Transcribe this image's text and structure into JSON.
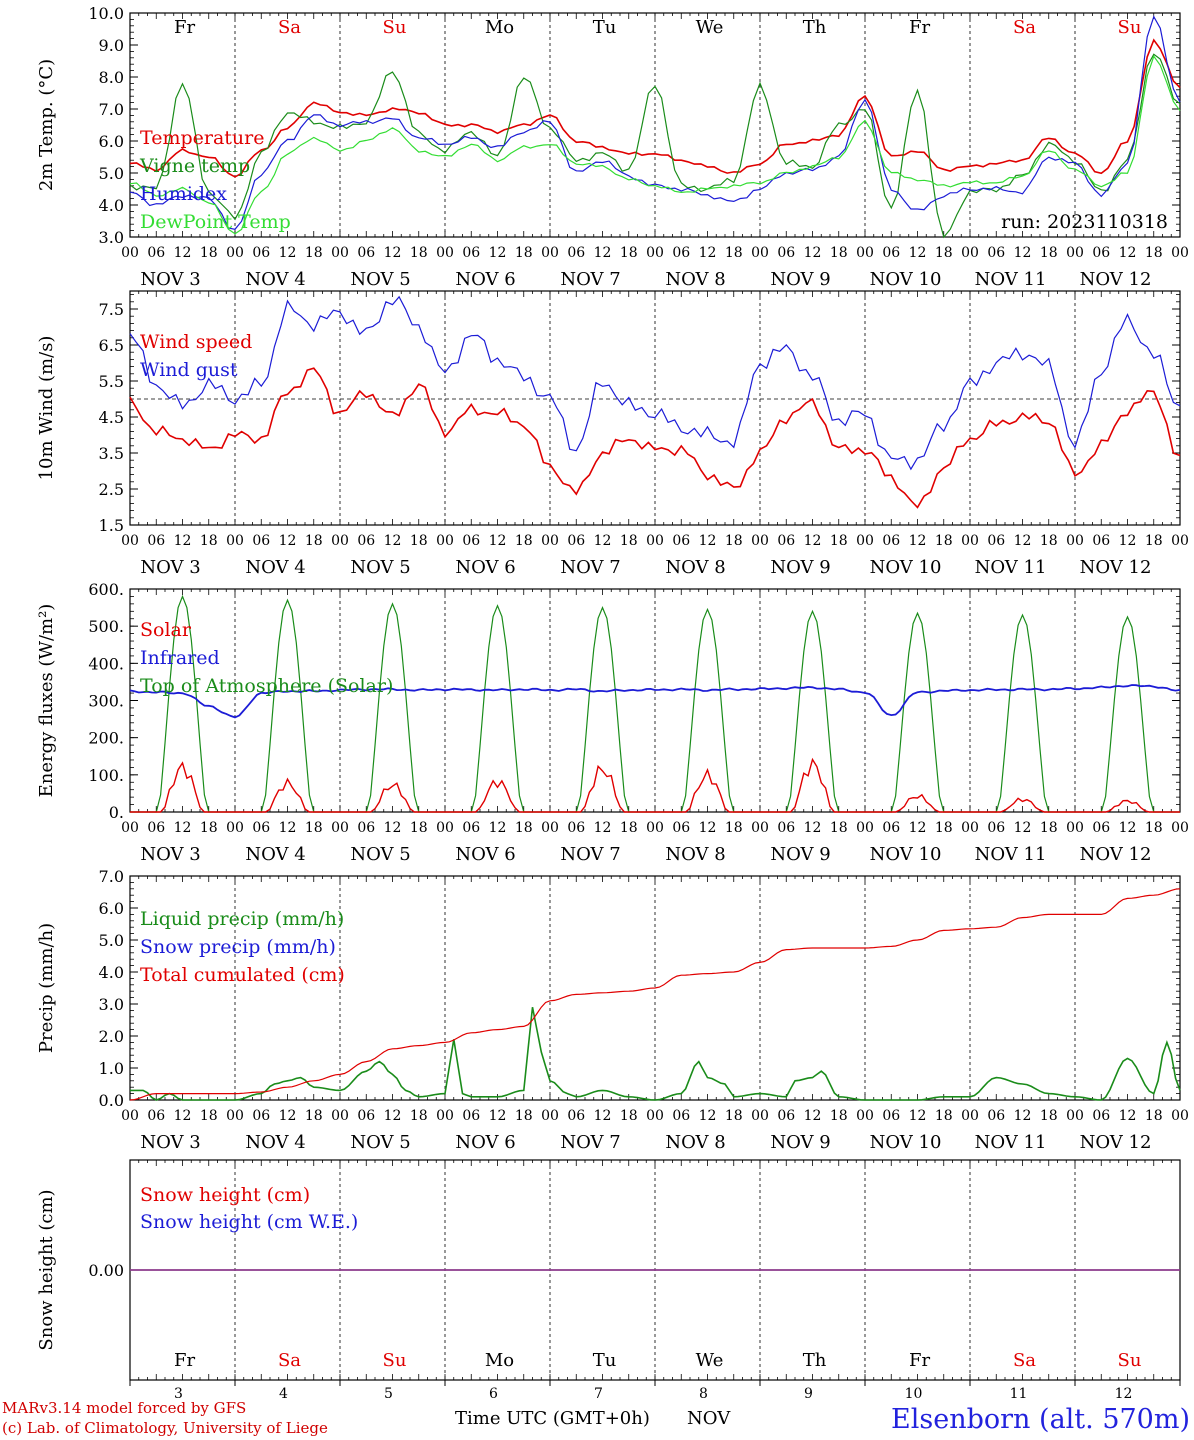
{
  "run_label": "run: 2023110318",
  "footer": {
    "model": "MARv3.14 model forced by GFS",
    "credit": "(c) Lab. of Climatology, University of Liege",
    "axis_title": "Time UTC (GMT+0h)",
    "month": "NOV",
    "station": "Elsenborn (alt. 570m)"
  },
  "days": [
    {
      "abbr": "Fr",
      "date": "3",
      "label": "NOV  3",
      "weekend": false
    },
    {
      "abbr": "Sa",
      "date": "4",
      "label": "NOV  4",
      "weekend": true
    },
    {
      "abbr": "Su",
      "date": "5",
      "label": "NOV  5",
      "weekend": true
    },
    {
      "abbr": "Mo",
      "date": "6",
      "label": "NOV  6",
      "weekend": false
    },
    {
      "abbr": "Tu",
      "date": "7",
      "label": "NOV  7",
      "weekend": false
    },
    {
      "abbr": "We",
      "date": "8",
      "label": "NOV  8",
      "weekend": false
    },
    {
      "abbr": "Th",
      "date": "9",
      "label": "NOV  9",
      "weekend": false
    },
    {
      "abbr": "Fr",
      "date": "10",
      "label": "NOV 10",
      "weekend": false
    },
    {
      "abbr": "Sa",
      "date": "11",
      "label": "NOV 11",
      "weekend": true
    },
    {
      "abbr": "Su",
      "date": "12",
      "label": "NOV 12",
      "weekend": true
    }
  ],
  "hour_ticks": [
    "00",
    "06",
    "12",
    "18"
  ],
  "last_hour_tick": "00",
  "colors": {
    "red": "#e00000",
    "green": "#1a8c1a",
    "blue": "#1c1cd6",
    "lightgreen": "#33dd33",
    "weekend": "#e00000",
    "snowline": "#8b3a8b"
  },
  "chart_data": [
    {
      "id": "temperature",
      "type": "line",
      "ylabel": "2m Temp. (°C)",
      "ylim": [
        3.0,
        10.0
      ],
      "yticks": [
        "3.0",
        "4.0",
        "5.0",
        "6.0",
        "7.0",
        "8.0",
        "9.0",
        "10.0"
      ],
      "series": [
        {
          "name": "Temperature",
          "color": "#e00000",
          "x": [
            0,
            6,
            12,
            18,
            24,
            30,
            36,
            42,
            48,
            54,
            60,
            66,
            72,
            78,
            84,
            90,
            96,
            102,
            108,
            114,
            120,
            126,
            132,
            138,
            144,
            150,
            156,
            162,
            168,
            174,
            180,
            186,
            192,
            198,
            204,
            210,
            216,
            222,
            228,
            234,
            240
          ],
          "y": [
            5.3,
            5.1,
            5.7,
            5.5,
            4.9,
            5.7,
            6.4,
            7.2,
            6.9,
            6.8,
            7.0,
            6.9,
            6.5,
            6.5,
            6.3,
            6.5,
            6.8,
            6.0,
            5.8,
            5.6,
            5.6,
            5.4,
            5.2,
            5.0,
            5.3,
            5.9,
            6.0,
            6.2,
            7.4,
            5.5,
            5.7,
            5.1,
            5.2,
            5.3,
            5.4,
            6.1,
            5.6,
            5.0,
            6.0,
            9.1,
            7.7
          ]
        },
        {
          "name": "Vigne temp",
          "color": "#1a8c1a",
          "x": [
            0,
            6,
            12,
            18,
            24,
            30,
            36,
            42,
            48,
            54,
            60,
            66,
            72,
            78,
            84,
            90,
            96,
            102,
            108,
            114,
            120,
            126,
            132,
            138,
            144,
            150,
            156,
            162,
            168,
            174,
            180,
            186,
            192,
            198,
            204,
            210,
            216,
            222,
            228,
            234,
            240
          ],
          "y": [
            4.6,
            4.5,
            7.8,
            4.4,
            3.6,
            5.6,
            6.9,
            6.6,
            6.4,
            6.6,
            8.2,
            6.2,
            5.7,
            6.3,
            5.5,
            8.0,
            6.4,
            5.4,
            5.6,
            5.1,
            7.8,
            4.6,
            4.5,
            4.8,
            7.7,
            5.3,
            5.2,
            6.5,
            7.0,
            3.9,
            7.6,
            3.0,
            4.4,
            4.5,
            4.9,
            5.9,
            5.4,
            4.4,
            5.4,
            8.8,
            7.1
          ]
        },
        {
          "name": "Humidex",
          "color": "#1c1cd6",
          "x": [
            0,
            6,
            12,
            18,
            24,
            30,
            36,
            42,
            48,
            54,
            60,
            66,
            72,
            78,
            84,
            90,
            96,
            102,
            108,
            114,
            120,
            126,
            132,
            138,
            144,
            150,
            156,
            162,
            168,
            174,
            180,
            186,
            192,
            198,
            204,
            210,
            216,
            222,
            228,
            234,
            240
          ],
          "y": [
            4.4,
            4.0,
            4.3,
            4.2,
            3.2,
            5.0,
            6.0,
            6.8,
            6.5,
            6.6,
            6.7,
            6.1,
            5.9,
            6.1,
            5.8,
            6.3,
            6.6,
            5.0,
            5.4,
            4.9,
            4.6,
            4.5,
            4.3,
            4.1,
            4.5,
            5.0,
            5.1,
            5.5,
            7.3,
            4.5,
            3.8,
            4.3,
            4.5,
            4.5,
            4.4,
            5.5,
            5.3,
            4.3,
            5.3,
            9.9,
            7.2
          ]
        },
        {
          "name": "DewPoint Temp",
          "color": "#33dd33",
          "x": [
            0,
            6,
            12,
            18,
            24,
            30,
            36,
            42,
            48,
            54,
            60,
            66,
            72,
            78,
            84,
            90,
            96,
            102,
            108,
            114,
            120,
            126,
            132,
            138,
            144,
            150,
            156,
            162,
            168,
            174,
            180,
            186,
            192,
            198,
            204,
            210,
            216,
            222,
            228,
            234,
            240
          ],
          "y": [
            4.7,
            4.3,
            4.5,
            4.1,
            3.1,
            4.4,
            5.6,
            6.1,
            5.7,
            6.0,
            6.4,
            5.7,
            5.5,
            5.9,
            5.4,
            5.8,
            5.9,
            5.3,
            5.2,
            4.8,
            4.6,
            4.4,
            4.5,
            4.6,
            4.7,
            5.0,
            5.2,
            5.5,
            6.6,
            5.0,
            4.8,
            4.6,
            4.7,
            4.7,
            4.9,
            5.7,
            5.1,
            4.6,
            5.0,
            8.6,
            7.0
          ]
        }
      ]
    },
    {
      "id": "wind",
      "type": "line",
      "ylabel": "10m Wind (m/s)",
      "ylim": [
        1.5,
        8.0
      ],
      "yticks": [
        "1.5",
        "2.5",
        "3.5",
        "4.5",
        "5.5",
        "6.5",
        "7.5"
      ],
      "ref_line": 5.0,
      "series": [
        {
          "name": "Wind speed",
          "color": "#e00000",
          "x": [
            0,
            6,
            12,
            18,
            24,
            30,
            36,
            42,
            48,
            54,
            60,
            66,
            72,
            78,
            84,
            90,
            96,
            102,
            108,
            114,
            120,
            126,
            132,
            138,
            144,
            150,
            156,
            162,
            168,
            174,
            180,
            186,
            192,
            198,
            204,
            210,
            216,
            222,
            228,
            234,
            240
          ],
          "y": [
            4.9,
            4.1,
            3.9,
            3.6,
            4.0,
            3.9,
            5.2,
            5.8,
            4.6,
            5.2,
            4.5,
            5.4,
            4.1,
            4.7,
            4.6,
            4.3,
            3.1,
            2.4,
            3.5,
            3.9,
            3.6,
            3.6,
            2.9,
            2.5,
            3.5,
            4.5,
            4.9,
            3.6,
            3.6,
            2.8,
            2.0,
            3.1,
            3.9,
            4.3,
            4.5,
            4.4,
            2.9,
            3.7,
            4.7,
            5.2,
            3.3
          ]
        },
        {
          "name": "Wind gust",
          "color": "#1c1cd6",
          "x": [
            0,
            6,
            12,
            18,
            24,
            30,
            36,
            42,
            48,
            54,
            60,
            66,
            72,
            78,
            84,
            90,
            96,
            102,
            108,
            114,
            120,
            126,
            132,
            138,
            144,
            150,
            156,
            162,
            168,
            174,
            180,
            186,
            192,
            198,
            204,
            210,
            216,
            222,
            228,
            234,
            240
          ],
          "y": [
            6.8,
            5.4,
            4.8,
            5.4,
            5.0,
            5.4,
            7.5,
            7.1,
            7.4,
            6.8,
            7.8,
            7.0,
            5.7,
            6.8,
            6.1,
            5.6,
            5.0,
            3.6,
            5.5,
            4.8,
            4.6,
            4.2,
            4.0,
            3.8,
            6.0,
            6.4,
            5.6,
            4.4,
            4.6,
            3.3,
            3.3,
            4.3,
            5.4,
            6.0,
            6.3,
            5.9,
            3.7,
            5.8,
            7.2,
            6.2,
            4.8
          ]
        }
      ]
    },
    {
      "id": "energy",
      "type": "line",
      "ylabel": "Energy fluxes (W/m²)",
      "ylim": [
        0,
        600
      ],
      "yticks": [
        "0.",
        "100.",
        "200.",
        "300.",
        "400.",
        "500.",
        "600."
      ],
      "solar_peaks": [
        140,
        90,
        85,
        95,
        135,
        115,
        150,
        50,
        40,
        35
      ],
      "toa_peaks": [
        580,
        570,
        560,
        555,
        550,
        545,
        540,
        535,
        530,
        525
      ],
      "series": [
        {
          "name": "Solar",
          "color": "#e00000"
        },
        {
          "name": "Infrared",
          "color": "#1c1cd6",
          "x": [
            0,
            6,
            12,
            18,
            24,
            30,
            36,
            42,
            48,
            54,
            60,
            66,
            72,
            78,
            84,
            90,
            96,
            102,
            108,
            114,
            120,
            126,
            132,
            138,
            144,
            150,
            156,
            162,
            168,
            174,
            180,
            186,
            192,
            198,
            204,
            210,
            216,
            222,
            228,
            234,
            240
          ],
          "y": [
            325,
            322,
            320,
            285,
            255,
            320,
            325,
            325,
            328,
            330,
            330,
            328,
            330,
            329,
            328,
            330,
            328,
            330,
            325,
            328,
            329,
            330,
            328,
            330,
            331,
            333,
            335,
            330,
            322,
            260,
            322,
            326,
            328,
            329,
            330,
            330,
            332,
            335,
            340,
            338,
            326
          ]
        },
        {
          "name": "Top of Atmosphere (Solar)",
          "color": "#1a8c1a"
        }
      ]
    },
    {
      "id": "precip",
      "type": "line",
      "ylabel": "Precip (mm/h)",
      "ylim": [
        0,
        7.0
      ],
      "yticks": [
        "0.0",
        "1.0",
        "2.0",
        "3.0",
        "4.0",
        "5.0",
        "6.0",
        "7.0"
      ],
      "series": [
        {
          "name": "Liquid precip (mm/h)",
          "color": "#1a8c1a",
          "x": [
            0,
            3,
            6,
            9,
            12,
            18,
            24,
            30,
            33,
            36,
            39,
            42,
            48,
            54,
            57,
            60,
            63,
            66,
            72,
            74,
            76,
            78,
            84,
            90,
            92,
            94,
            96,
            100,
            102,
            108,
            114,
            120,
            126,
            130,
            132,
            136,
            138,
            144,
            150,
            152,
            156,
            158,
            162,
            168,
            174,
            180,
            186,
            192,
            198,
            204,
            210,
            216,
            222,
            228,
            234,
            237,
            240
          ],
          "y": [
            0.3,
            0.3,
            0.0,
            0.2,
            0.0,
            0.0,
            0.0,
            0.2,
            0.5,
            0.6,
            0.7,
            0.4,
            0.3,
            0.9,
            1.2,
            0.8,
            0.3,
            0.1,
            0.2,
            1.9,
            0.2,
            0.1,
            0.1,
            0.3,
            2.9,
            1.5,
            0.6,
            0.2,
            0.1,
            0.3,
            0.1,
            0.0,
            0.2,
            1.2,
            0.7,
            0.5,
            0.1,
            0.2,
            0.1,
            0.6,
            0.7,
            0.9,
            0.1,
            0.0,
            0.0,
            0.0,
            0.1,
            0.1,
            0.7,
            0.5,
            0.2,
            0.1,
            0.0,
            1.3,
            0.2,
            1.8,
            0.3
          ]
        },
        {
          "name": "Snow precip (mm/h)",
          "color": "#1c1cd6"
        },
        {
          "name": "Total cumulated (cm)",
          "color": "#e00000",
          "x": [
            0,
            6,
            12,
            18,
            24,
            30,
            36,
            42,
            48,
            54,
            60,
            66,
            72,
            78,
            84,
            90,
            96,
            102,
            108,
            114,
            120,
            126,
            132,
            138,
            144,
            150,
            156,
            162,
            168,
            174,
            180,
            186,
            192,
            198,
            204,
            210,
            216,
            222,
            228,
            234,
            240
          ],
          "y": [
            0.0,
            0.2,
            0.2,
            0.2,
            0.2,
            0.25,
            0.4,
            0.6,
            0.8,
            1.2,
            1.6,
            1.7,
            1.8,
            2.1,
            2.2,
            2.3,
            3.1,
            3.3,
            3.35,
            3.4,
            3.5,
            3.9,
            3.95,
            4.0,
            4.3,
            4.7,
            4.75,
            4.75,
            4.75,
            4.8,
            5.0,
            5.3,
            5.35,
            5.4,
            5.7,
            5.8,
            5.8,
            5.8,
            6.3,
            6.4,
            6.6
          ]
        }
      ]
    },
    {
      "id": "snow",
      "type": "line",
      "ylabel": "Snow height (cm)",
      "ylim": [
        -1,
        1
      ],
      "yticks": [
        "0.00"
      ],
      "series": [
        {
          "name": "Snow height (cm)",
          "color": "#e00000",
          "x": [
            0,
            240
          ],
          "y": [
            0,
            0
          ]
        },
        {
          "name": "Snow height (cm W.E.)",
          "color": "#1c1cd6",
          "x": [
            0,
            240
          ],
          "y": [
            0,
            0
          ]
        }
      ]
    }
  ]
}
